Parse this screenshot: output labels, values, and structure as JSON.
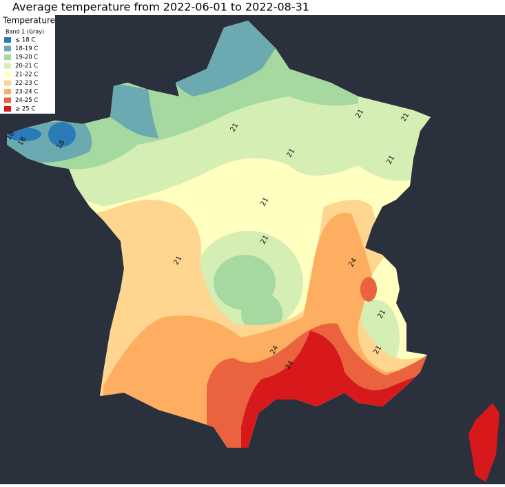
{
  "title": "Average temperature from 2022-06-01 to 2022-08-31",
  "legend": {
    "title": "Temperature",
    "subtitle": "Band 1 (Gray)",
    "items": [
      {
        "label": "≤ 18 C",
        "color": "#2c7bb6"
      },
      {
        "label": "18-19 C",
        "color": "#6aaab0"
      },
      {
        "label": "19-20 C",
        "color": "#a6d9a0"
      },
      {
        "label": "20-21 C",
        "color": "#d5eeb3"
      },
      {
        "label": "21-22 C",
        "color": "#ffffbf"
      },
      {
        "label": "22-23 C",
        "color": "#fed690"
      },
      {
        "label": "23-24 C",
        "color": "#fdae61"
      },
      {
        "label": "24-25 C",
        "color": "#ea633e"
      },
      {
        "label": "≥ 25 C",
        "color": "#d7191c"
      }
    ]
  },
  "contour_labels": [
    "21",
    "21",
    "21",
    "21",
    "21",
    "21",
    "21",
    "21",
    "21",
    "21",
    "24",
    "24",
    "24",
    "18",
    "18",
    "18"
  ]
}
